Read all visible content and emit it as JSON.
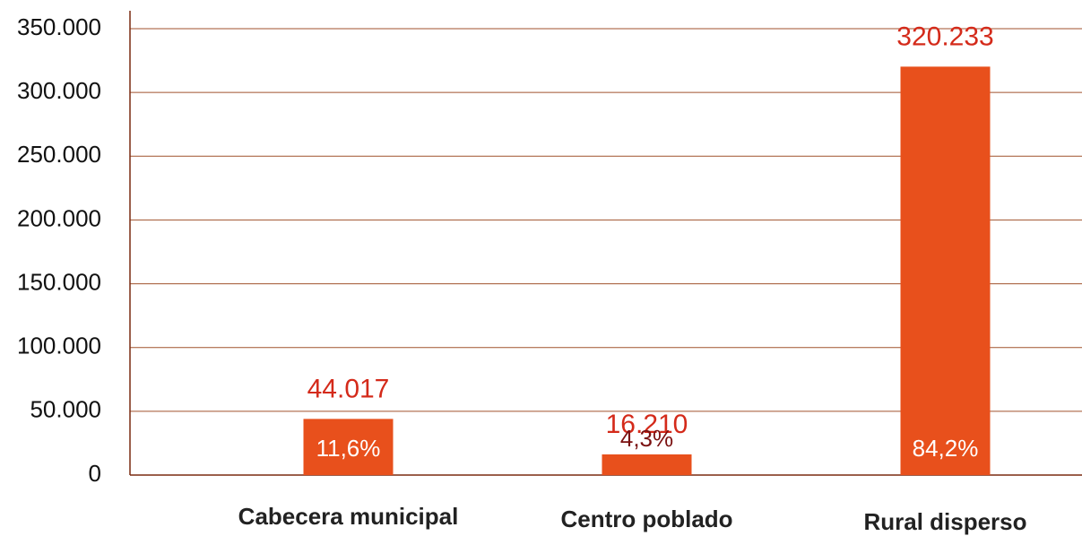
{
  "chart_data": {
    "type": "bar",
    "categories": [
      "Cabecera municipal",
      "Centro poblado",
      "Rural disperso"
    ],
    "values": [
      44017,
      16210,
      320233
    ],
    "value_labels": [
      "44.017",
      "16.210",
      "320.233"
    ],
    "shares": [
      11.6,
      4.3,
      84.2
    ],
    "share_labels": [
      "11,6%",
      "4,3%",
      "84,2%"
    ],
    "color": "#e8501c",
    "ylim": [
      0,
      350000
    ],
    "yticks": [
      0,
      {
        "value": 50000,
        "label": "50.000"
      },
      {
        "value": 100000,
        "label": "100.000"
      },
      {
        "value": 150000,
        "label": "150.000"
      },
      {
        "value": 200000,
        "label": "200.000"
      },
      {
        "value": 250000,
        "label": "250.000"
      },
      {
        "value": 300000,
        "label": "300.000"
      },
      {
        "value": 350000,
        "label": "350.000"
      }
    ],
    "grid": true
  }
}
